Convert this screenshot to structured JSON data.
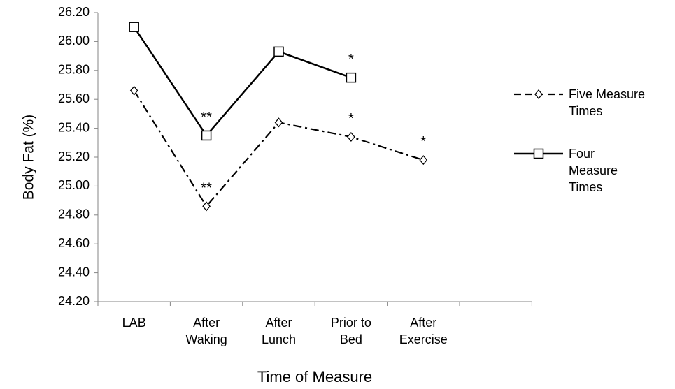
{
  "chart_data": {
    "type": "line",
    "ylabel": "Body Fat (%)",
    "xlabel": "Time of Measure",
    "categories": [
      "LAB",
      "After Waking",
      "After Lunch",
      "Prior to Bed",
      "After Exercise",
      null
    ],
    "series": [
      {
        "name": "Five Measure Times",
        "color": "#000000",
        "style": "dashdot",
        "marker": "diamond",
        "values": [
          25.66,
          24.86,
          25.44,
          25.34,
          25.18,
          null
        ]
      },
      {
        "name": "Four Measure Times",
        "color": "#000000",
        "style": "solid",
        "marker": "square",
        "values": [
          26.1,
          25.35,
          25.93,
          25.75,
          null,
          null
        ]
      }
    ],
    "ylim": [
      24.2,
      26.2
    ],
    "yticks": [
      {
        "value": 24.2,
        "label": "24.20"
      },
      {
        "value": 24.4,
        "label": "24.40"
      },
      {
        "value": 24.6,
        "label": "24.60"
      },
      {
        "value": 24.8,
        "label": "24.80"
      },
      {
        "value": 25.0,
        "label": "25.00"
      },
      {
        "value": 25.2,
        "label": "25.20"
      },
      {
        "value": 25.4,
        "label": "25.40"
      },
      {
        "value": 25.6,
        "label": "25.60"
      },
      {
        "value": 25.8,
        "label": "25.80"
      },
      {
        "value": 26.0,
        "label": "26.00"
      },
      {
        "value": 26.2,
        "label": "26.20"
      }
    ],
    "grid": false,
    "legend": "right",
    "annotations": [
      {
        "text": "**",
        "series": 0,
        "index": 1
      },
      {
        "text": "**",
        "series": 1,
        "index": 1
      },
      {
        "text": "*",
        "series": 0,
        "index": 3
      },
      {
        "text": "*",
        "series": 1,
        "index": 3
      },
      {
        "text": "*",
        "series": 0,
        "index": 4
      }
    ]
  }
}
